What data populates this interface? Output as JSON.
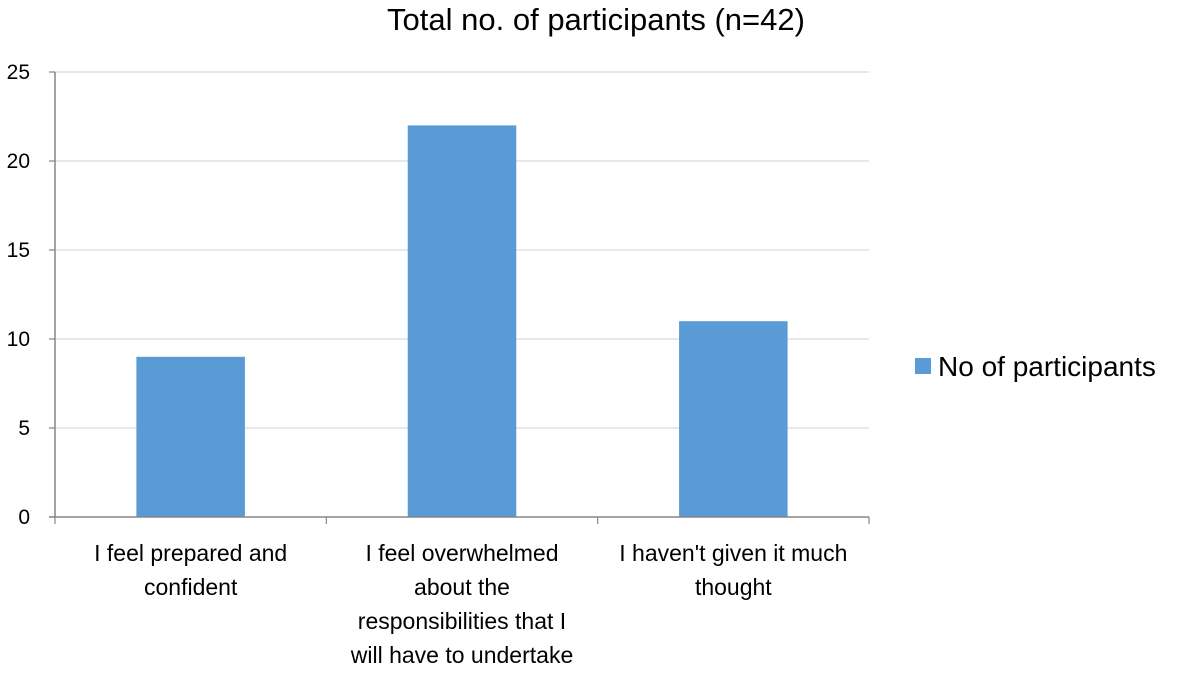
{
  "chart_data": {
    "type": "bar",
    "title": "Total no. of participants (n=42)",
    "xlabel": "",
    "ylabel": "",
    "categories": [
      "I feel prepared and confident",
      "I feel overwhelmed about the responsibilities that I will have to undertake",
      "I haven't given it much thought"
    ],
    "category_lines": [
      [
        "I feel prepared and",
        "confident"
      ],
      [
        "I feel overwhelmed",
        "about the",
        "responsibilities that I",
        "will have to undertake"
      ],
      [
        "I haven't given it much",
        "thought"
      ]
    ],
    "series": [
      {
        "name": "No of participants",
        "color": "#5B9BD5",
        "values": [
          9,
          22,
          11
        ]
      }
    ],
    "ylim": [
      0,
      25
    ],
    "yticks": [
      0,
      5,
      10,
      15,
      20,
      25
    ],
    "grid": true,
    "legend": "right",
    "gridline_color": "#D9D9D9",
    "axis_color": "#868686"
  }
}
